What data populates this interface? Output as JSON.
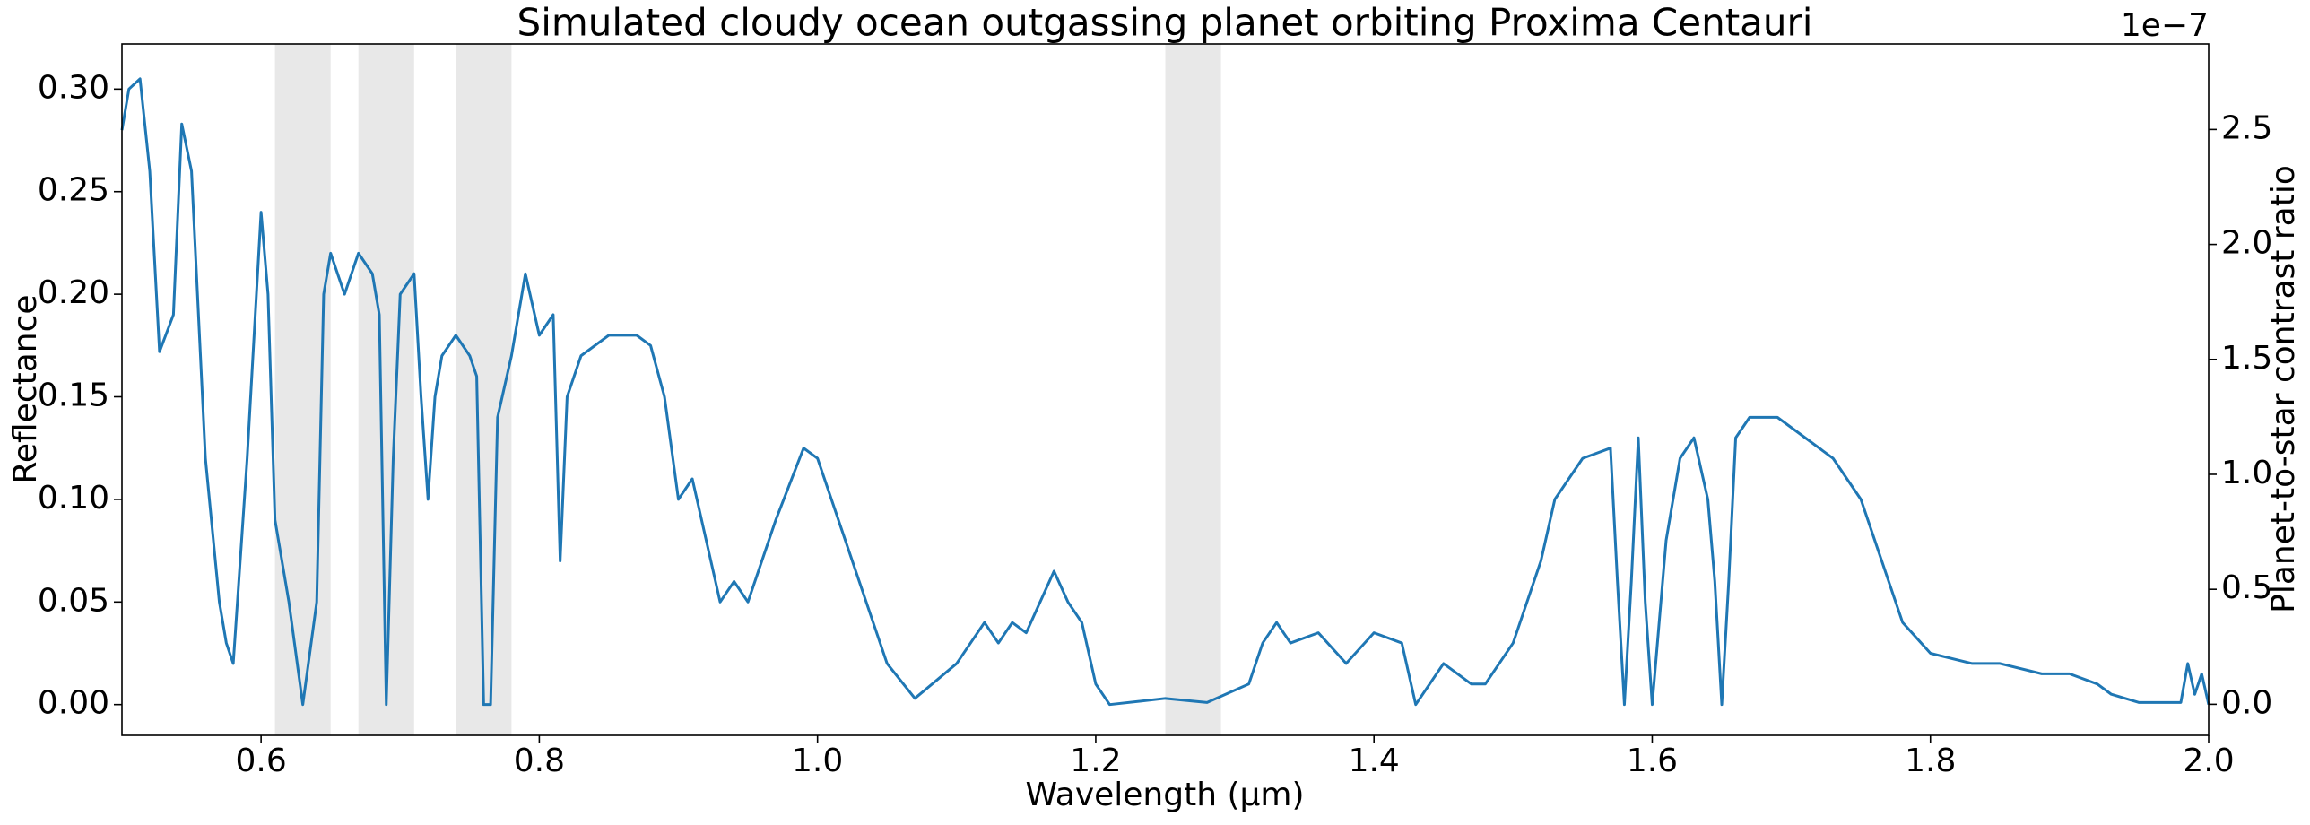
{
  "chart_data": {
    "type": "line",
    "title": "Simulated cloudy ocean outgassing planet orbiting Proxima Centauri",
    "x_label": "Wavelength (μm)",
    "y_label": "Reflectance",
    "y2_label": "Planet-to-star contrast ratio",
    "y2_offset_label": "1e−7",
    "xlim": [
      0.5,
      2.0
    ],
    "xticks": [
      0.6,
      0.8,
      {
        "value": 1.0,
        "label": "1.0"
      },
      1.2,
      1.4,
      1.6,
      1.8,
      {
        "value": 2.0,
        "label": "2.0"
      }
    ],
    "ylim": [
      -0.015,
      0.322
    ],
    "yticks": [
      {
        "value": 0,
        "label": "0.00"
      },
      0.05,
      {
        "value": 0.1,
        "label": "0.10"
      },
      0.15,
      {
        "value": 0.2,
        "label": "0.20"
      },
      0.25,
      {
        "value": 0.3,
        "label": "0.30"
      }
    ],
    "y2lim": [
      -0.135,
      2.872
    ],
    "y2ticks": [
      {
        "value": 0,
        "label": "0.0"
      },
      0.5,
      {
        "value": 1,
        "label": "1.0"
      },
      1.5,
      {
        "value": 2,
        "label": "2.0"
      },
      2.5
    ],
    "shaded_regions": [
      [
        0.61,
        0.65
      ],
      [
        0.67,
        0.71
      ],
      [
        0.74,
        0.78
      ],
      [
        1.25,
        1.29
      ]
    ],
    "shade_color": "#e8e8e8",
    "x": [
      0.5,
      0.505,
      0.513,
      0.52,
      0.527,
      0.537,
      0.543,
      0.55,
      0.56,
      0.57,
      0.575,
      0.58,
      0.59,
      0.6,
      0.605,
      0.61,
      0.62,
      0.63,
      0.64,
      0.645,
      0.65,
      0.66,
      0.67,
      0.68,
      0.685,
      0.69,
      0.695,
      0.7,
      0.71,
      0.715,
      0.72,
      0.725,
      0.73,
      0.74,
      0.75,
      0.755,
      0.76,
      0.765,
      0.77,
      0.78,
      0.79,
      0.8,
      0.81,
      0.815,
      0.82,
      0.83,
      0.85,
      0.87,
      0.88,
      0.89,
      0.9,
      0.91,
      0.92,
      0.93,
      0.94,
      0.95,
      0.96,
      0.97,
      0.99,
      1.0,
      1.02,
      1.05,
      1.07,
      1.1,
      1.12,
      1.13,
      1.14,
      1.15,
      1.17,
      1.18,
      1.19,
      1.2,
      1.21,
      1.25,
      1.28,
      1.31,
      1.32,
      1.33,
      1.34,
      1.36,
      1.38,
      1.4,
      1.42,
      1.43,
      1.45,
      1.47,
      1.48,
      1.5,
      1.52,
      1.53,
      1.55,
      1.57,
      1.575,
      1.58,
      1.585,
      1.59,
      1.595,
      1.6,
      1.61,
      1.62,
      1.63,
      1.64,
      1.645,
      1.65,
      1.655,
      1.66,
      1.67,
      1.69,
      1.71,
      1.73,
      1.75,
      1.76,
      1.78,
      1.8,
      1.83,
      1.85,
      1.88,
      1.9,
      1.92,
      1.93,
      1.95,
      1.98,
      1.985,
      1.99,
      1.995,
      2.0
    ],
    "series": [
      {
        "name": "Reflectance",
        "color": "#1f77b4",
        "values": [
          0.28,
          0.3,
          0.305,
          0.26,
          0.172,
          0.19,
          0.283,
          0.26,
          0.12,
          0.05,
          0.03,
          0.02,
          0.12,
          0.24,
          0.2,
          0.09,
          0.05,
          0.0,
          0.05,
          0.2,
          0.22,
          0.2,
          0.22,
          0.21,
          0.19,
          0.0,
          0.12,
          0.2,
          0.21,
          0.15,
          0.1,
          0.15,
          0.17,
          0.18,
          0.17,
          0.16,
          0.0,
          0.0,
          0.14,
          0.17,
          0.21,
          0.18,
          0.19,
          0.07,
          0.15,
          0.17,
          0.18,
          0.18,
          0.175,
          0.15,
          0.1,
          0.11,
          0.08,
          0.05,
          0.06,
          0.05,
          0.07,
          0.09,
          0.125,
          0.12,
          0.08,
          0.02,
          0.003,
          0.02,
          0.04,
          0.03,
          0.04,
          0.035,
          0.065,
          0.05,
          0.04,
          0.01,
          0.0,
          0.003,
          0.001,
          0.01,
          0.03,
          0.04,
          0.03,
          0.035,
          0.02,
          0.035,
          0.03,
          0.0,
          0.02,
          0.01,
          0.01,
          0.03,
          0.07,
          0.1,
          0.12,
          0.125,
          0.06,
          0.0,
          0.06,
          0.13,
          0.05,
          0.0,
          0.08,
          0.12,
          0.13,
          0.1,
          0.06,
          0.0,
          0.06,
          0.13,
          0.14,
          0.14,
          0.13,
          0.12,
          0.1,
          0.08,
          0.04,
          0.025,
          0.02,
          0.02,
          0.015,
          0.015,
          0.01,
          0.005,
          0.001,
          0.001,
          0.02,
          0.005,
          0.015,
          0.0
        ]
      }
    ]
  }
}
